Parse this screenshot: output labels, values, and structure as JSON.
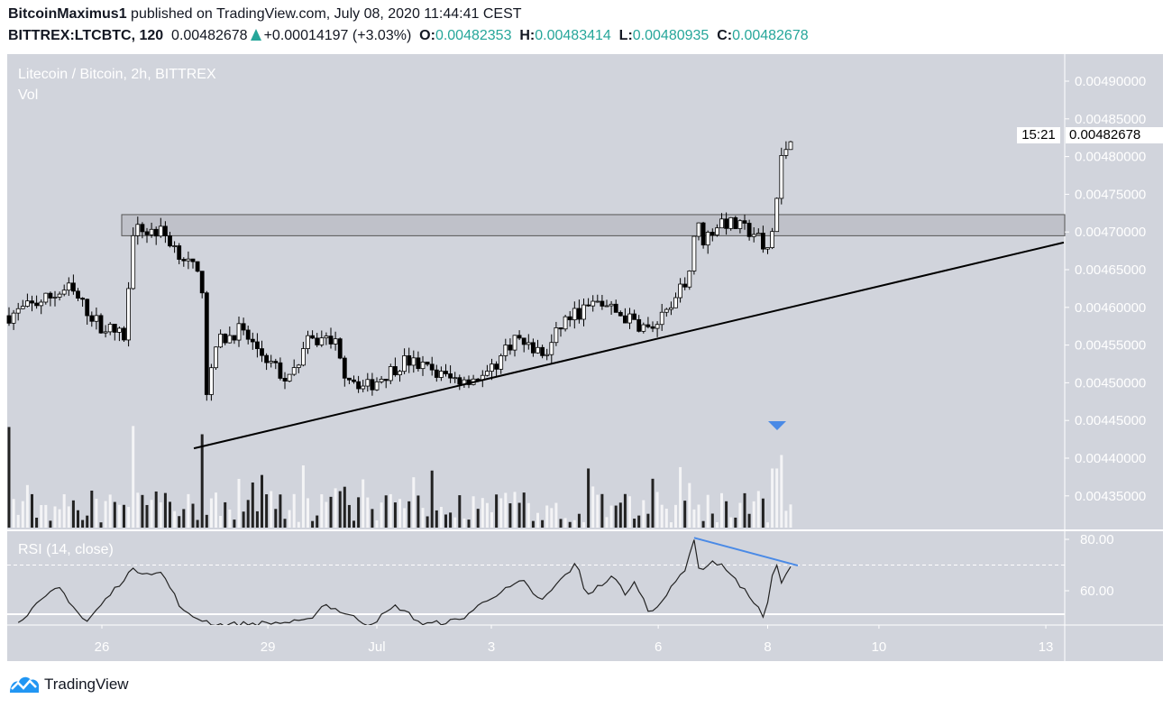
{
  "header": {
    "author": "BitcoinMaximus1",
    "published": "published on TradingView.com, July 08, 2020 11:44:41 CEST",
    "symbol": "BITTREX:LTCBTC, 120",
    "last": "0.00482678",
    "change": "+0.00014197 (+3.03%)",
    "o_label": "O:",
    "o": "0.00482353",
    "h_label": "H:",
    "h": "0.00483414",
    "l_label": "L:",
    "l": "0.00480935",
    "c_label": "C:",
    "c": "0.00482678"
  },
  "legend": {
    "title": "Litecoin / Bitcoin, 2h, BITTREX",
    "vol": "Vol",
    "rsi": "RSI (14, close)"
  },
  "price_badge": "0.00482678",
  "countdown": "15:21",
  "brand": "TradingView",
  "colors": {
    "bg": "#d1d4dc",
    "accent": "#4a8ae6",
    "up": "#26a69a"
  },
  "chart_data": {
    "type": "candlestick",
    "price_ticks": [
      "0.00490000",
      "0.00485000",
      "0.00480000",
      "0.00475000",
      "0.00470000",
      "0.00465000",
      "0.00460000",
      "0.00455000",
      "0.00450000",
      "0.00445000",
      "0.00440000",
      "0.00435000"
    ],
    "price_tick_values": [
      0.0049,
      0.00485,
      0.0048,
      0.00475,
      0.0047,
      0.00465,
      0.0046,
      0.00455,
      0.0045,
      0.00445,
      0.0044,
      0.00435
    ],
    "time_labels": [
      {
        "label": "26",
        "i": 20.2
      },
      {
        "label": "29",
        "i": 56.3
      },
      {
        "label": "Jul",
        "i": 80
      },
      {
        "label": "3",
        "i": 104.9
      },
      {
        "label": "6",
        "i": 141.2
      },
      {
        "label": "8",
        "i": 165
      },
      {
        "label": "10",
        "i": 189.2
      },
      {
        "label": "13",
        "i": 225.5
      }
    ],
    "close_waypoints": [
      [
        0,
        0.004589
      ],
      [
        13,
        0.004625
      ],
      [
        19.6,
        0.004577
      ],
      [
        25.5,
        0.00456
      ],
      [
        26.7,
        0.004703
      ],
      [
        33.3,
        0.0047
      ],
      [
        40.2,
        0.00465
      ],
      [
        42.2,
        0.004625
      ],
      [
        43.1,
        0.004475
      ],
      [
        45.1,
        0.004553
      ],
      [
        50,
        0.00457
      ],
      [
        54.9,
        0.00454
      ],
      [
        60.8,
        0.0045
      ],
      [
        64.7,
        0.004553
      ],
      [
        70.6,
        0.00456
      ],
      [
        72.5,
        0.004517
      ],
      [
        77.5,
        0.004493
      ],
      [
        86.3,
        0.00453
      ],
      [
        96.1,
        0.004505
      ],
      [
        104,
        0.004508
      ],
      [
        109.8,
        0.00456
      ],
      [
        116.7,
        0.004535
      ],
      [
        120.6,
        0.004583
      ],
      [
        128.4,
        0.004607
      ],
      [
        133.3,
        0.004589
      ],
      [
        139.2,
        0.00457
      ],
      [
        144.1,
        0.004595
      ],
      [
        148,
        0.00465
      ],
      [
        149.4,
        0.004715
      ],
      [
        151,
        0.00469
      ],
      [
        154.9,
        0.004715
      ],
      [
        162.7,
        0.004697
      ],
      [
        164.3,
        0.004667
      ],
      [
        165.7,
        0.00469
      ],
      [
        166.7,
        0.004726
      ],
      [
        167.8,
        0.004792
      ],
      [
        170,
        0.004828
      ]
    ],
    "resistance_zone": [
      0.004695,
      0.004723
    ],
    "trendline": {
      "from": [
        40.2,
        0.004413
      ],
      "to": [
        229.4,
        0.004686
      ]
    },
    "volume_spikes": [
      [
        0,
        0.97
      ],
      [
        27,
        0.98
      ],
      [
        42,
        0.9
      ],
      [
        166.5,
        0.57
      ],
      [
        167.8,
        0.7
      ],
      [
        148,
        0.43
      ],
      [
        126,
        0.57
      ],
      [
        64,
        0.6
      ]
    ],
    "rsi": {
      "levels": [
        80,
        60
      ],
      "level_labels": [
        "80.00",
        "60.00"
      ],
      "overbought": 70,
      "points": [
        [
          2,
          48.2
        ],
        [
          10.8,
          61.6
        ],
        [
          16.7,
          47.5
        ],
        [
          26.5,
          67.9
        ],
        [
          33.3,
          66.8
        ],
        [
          38.2,
          51.1
        ],
        [
          45.1,
          46.8
        ],
        [
          64.7,
          47.9
        ],
        [
          68.6,
          54.9
        ],
        [
          78.4,
          46.8
        ],
        [
          84.3,
          54.2
        ],
        [
          90.2,
          46.8
        ],
        [
          98,
          48.6
        ],
        [
          104.9,
          57.7
        ],
        [
          111.8,
          63.7
        ],
        [
          115.7,
          55.6
        ],
        [
          120.6,
          65.4
        ],
        [
          123.5,
          70.7
        ],
        [
          125.5,
          58.4
        ],
        [
          131.4,
          65.4
        ],
        [
          134.3,
          58.4
        ],
        [
          136.3,
          63.7
        ],
        [
          139.2,
          51.4
        ],
        [
          143.1,
          58.4
        ],
        [
          147.1,
          68.9
        ],
        [
          149,
          80.4
        ],
        [
          150,
          67.9
        ],
        [
          152.9,
          71.4
        ],
        [
          156.5,
          68.2
        ],
        [
          158.8,
          61.9
        ],
        [
          161.8,
          56.7
        ],
        [
          164.3,
          49
        ],
        [
          166.7,
          71.8
        ],
        [
          168,
          62.6
        ],
        [
          170,
          69.7
        ]
      ],
      "divergence": {
        "from": [
          149,
          80.6
        ],
        "to": [
          170,
          69.8
        ]
      }
    }
  }
}
